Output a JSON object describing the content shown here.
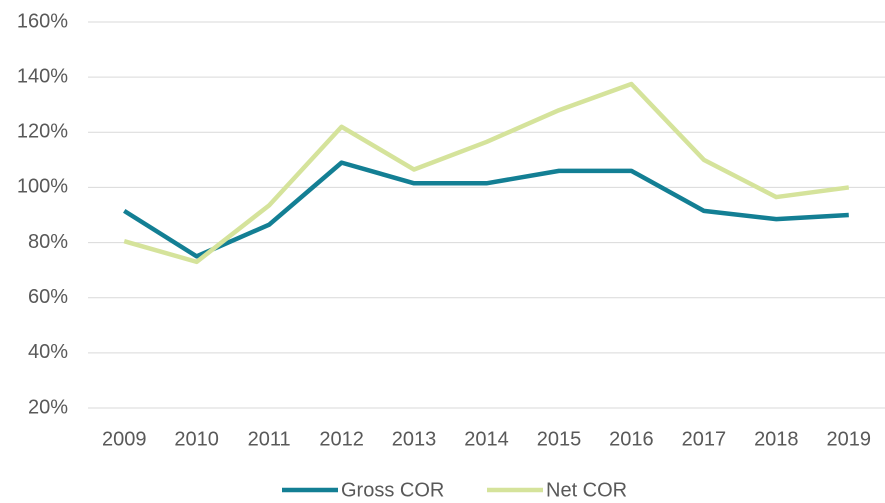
{
  "chart_data": {
    "type": "line",
    "categories": [
      "2009",
      "2010",
      "2011",
      "2012",
      "2013",
      "2014",
      "2015",
      "2016",
      "2017",
      "2018",
      "2019"
    ],
    "series": [
      {
        "name": "Gross COR",
        "color": "#137f94",
        "values": [
          91.5,
          75,
          86.5,
          109,
          101.5,
          101.5,
          106,
          106,
          91.5,
          88.5,
          90
        ]
      },
      {
        "name": "Net COR",
        "color": "#d5e39b",
        "values": [
          80.5,
          73,
          93.5,
          122,
          106.5,
          116.5,
          128,
          137.5,
          110,
          96.5,
          100
        ]
      }
    ],
    "ylim": [
      20,
      160
    ],
    "yticks": [
      {
        "value": 20,
        "label": "20%"
      },
      {
        "value": 40,
        "label": "40%"
      },
      {
        "value": 60,
        "label": "60%"
      },
      {
        "value": 80,
        "label": "80%"
      },
      {
        "value": 100,
        "label": "100%"
      },
      {
        "value": 120,
        "label": "120%"
      },
      {
        "value": 140,
        "label": "140%"
      },
      {
        "value": 160,
        "label": "160%"
      }
    ],
    "grid": true,
    "legend": "bottom"
  }
}
